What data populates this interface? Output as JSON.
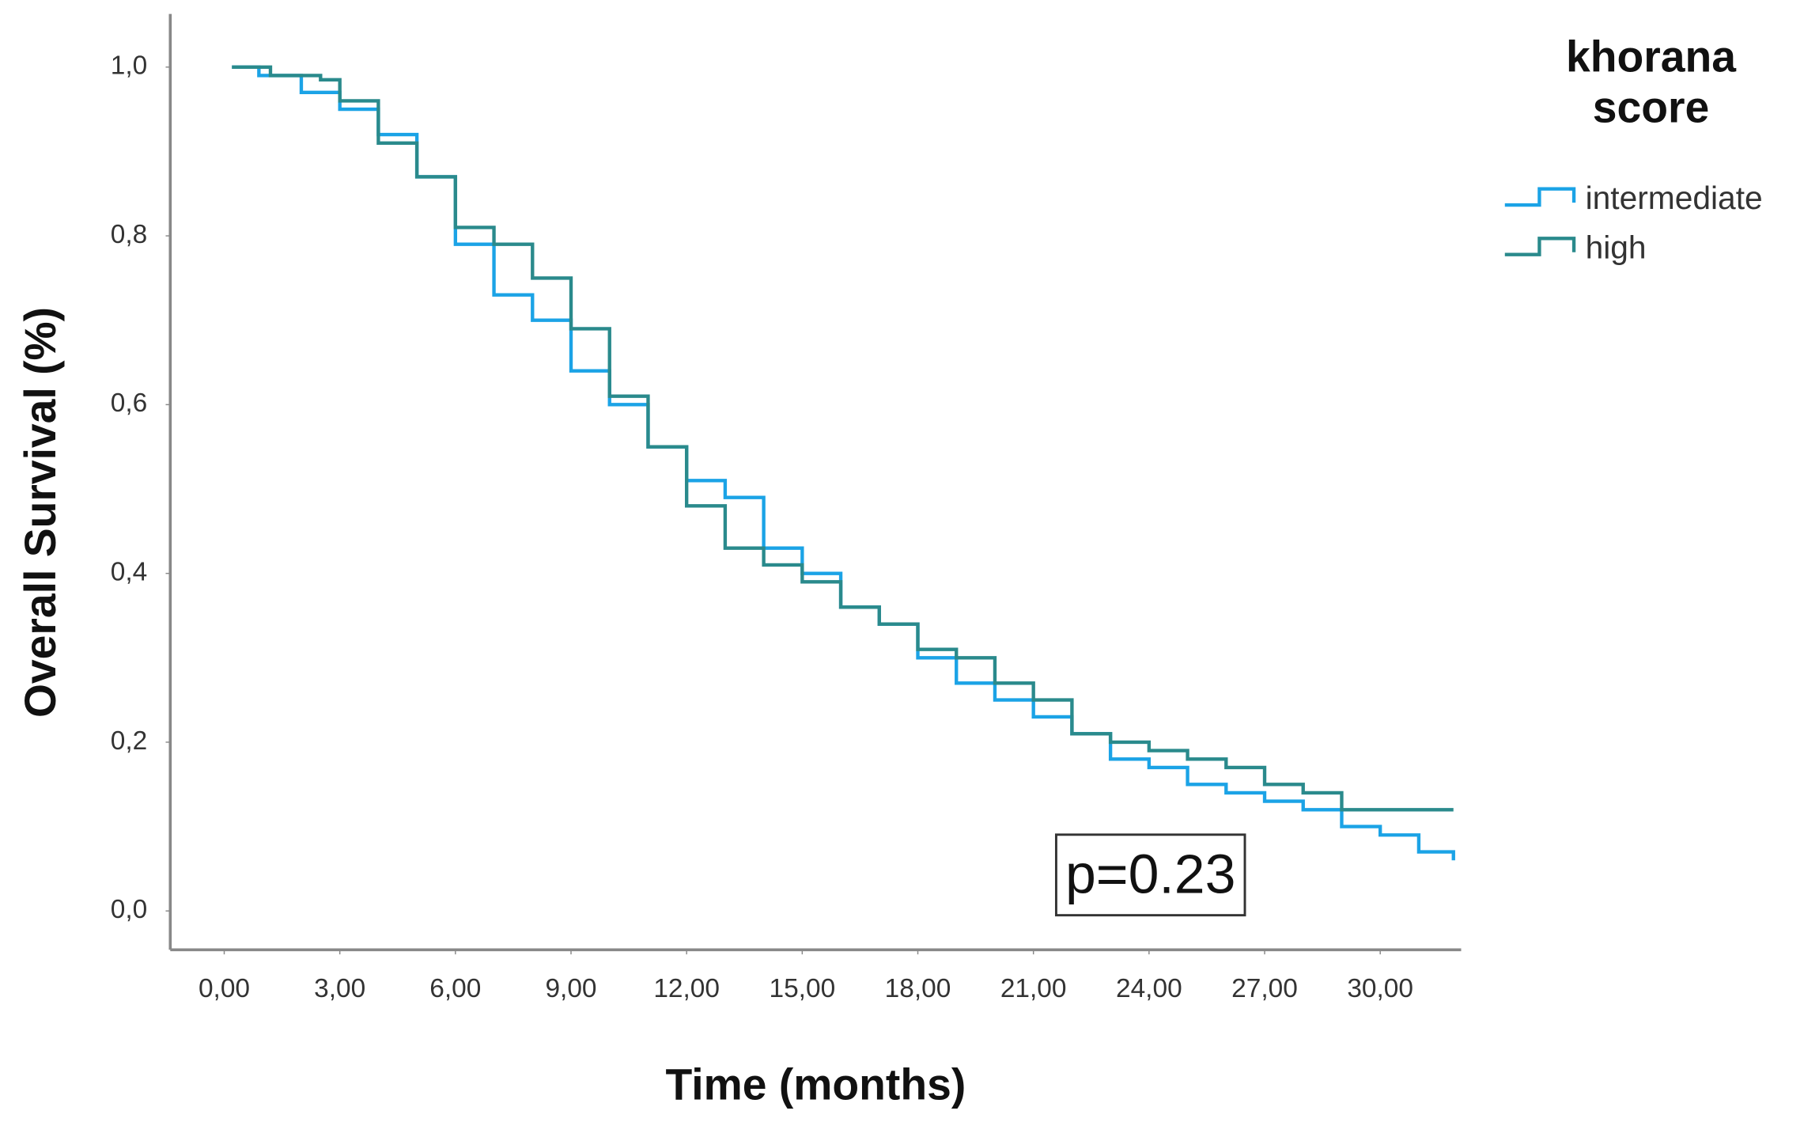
{
  "chart_data": {
    "type": "step",
    "xlabel": "Time (months)",
    "ylabel": "Overall Survival (%)",
    "legend_title": "khorana score",
    "annotation": "p=0.23",
    "xlim": [
      -1.4,
      32.1
    ],
    "ylim": [
      -0.046,
      1.063
    ],
    "xticks": [
      {
        "value": 0,
        "label": "0,00"
      },
      {
        "value": 3,
        "label": "3,00"
      },
      {
        "value": 6,
        "label": "6,00"
      },
      {
        "value": 9,
        "label": "9,00"
      },
      {
        "value": 12,
        "label": "12,00"
      },
      {
        "value": 15,
        "label": "15,00"
      },
      {
        "value": 18,
        "label": "18,00"
      },
      {
        "value": 21,
        "label": "21,00"
      },
      {
        "value": 24,
        "label": "24,00"
      },
      {
        "value": 27,
        "label": "27,00"
      },
      {
        "value": 30,
        "label": "30,00"
      }
    ],
    "yticks": [
      {
        "value": 0,
        "label": "0,0"
      },
      {
        "value": 0.2,
        "label": "0,2"
      },
      {
        "value": 0.4,
        "label": "0,4"
      },
      {
        "value": 0.6,
        "label": "0,6"
      },
      {
        "value": 0.8,
        "label": "0,8"
      },
      {
        "value": 1.0,
        "label": "1,0"
      }
    ],
    "series": [
      {
        "name": "intermediate",
        "color": "#1ba3e6",
        "x": [
          0.2,
          0.9,
          2.0,
          3.0,
          4.0,
          5.0,
          6.0,
          7.0,
          8.0,
          9.0,
          10.0,
          11.0,
          12.0,
          13.0,
          14.0,
          15.0,
          16.0,
          17.0,
          18.0,
          19.0,
          20.0,
          21.0,
          22.0,
          23.0,
          24.0,
          25.0,
          26.0,
          27.0,
          28.0,
          29.0,
          30.0,
          31.0,
          31.9
        ],
        "values": [
          1.0,
          0.99,
          0.97,
          0.95,
          0.92,
          0.87,
          0.79,
          0.73,
          0.7,
          0.64,
          0.6,
          0.55,
          0.51,
          0.49,
          0.43,
          0.4,
          0.36,
          0.34,
          0.3,
          0.27,
          0.25,
          0.23,
          0.21,
          0.18,
          0.17,
          0.15,
          0.14,
          0.13,
          0.12,
          0.1,
          0.09,
          0.07,
          0.06
        ]
      },
      {
        "name": "high",
        "color": "#2a8a8c",
        "x": [
          0.2,
          1.2,
          2.5,
          3.0,
          4.0,
          5.0,
          6.0,
          7.0,
          8.0,
          9.0,
          10.0,
          11.0,
          12.0,
          13.0,
          14.0,
          15.0,
          16.0,
          17.0,
          18.0,
          19.0,
          20.0,
          21.0,
          22.0,
          23.0,
          24.0,
          25.0,
          26.0,
          27.0,
          28.0,
          29.0,
          31.9
        ],
        "values": [
          1.0,
          0.99,
          0.985,
          0.96,
          0.91,
          0.87,
          0.81,
          0.79,
          0.75,
          0.69,
          0.61,
          0.55,
          0.48,
          0.43,
          0.41,
          0.39,
          0.36,
          0.34,
          0.31,
          0.3,
          0.27,
          0.25,
          0.21,
          0.2,
          0.19,
          0.18,
          0.17,
          0.15,
          0.14,
          0.12,
          0.12
        ]
      }
    ]
  }
}
